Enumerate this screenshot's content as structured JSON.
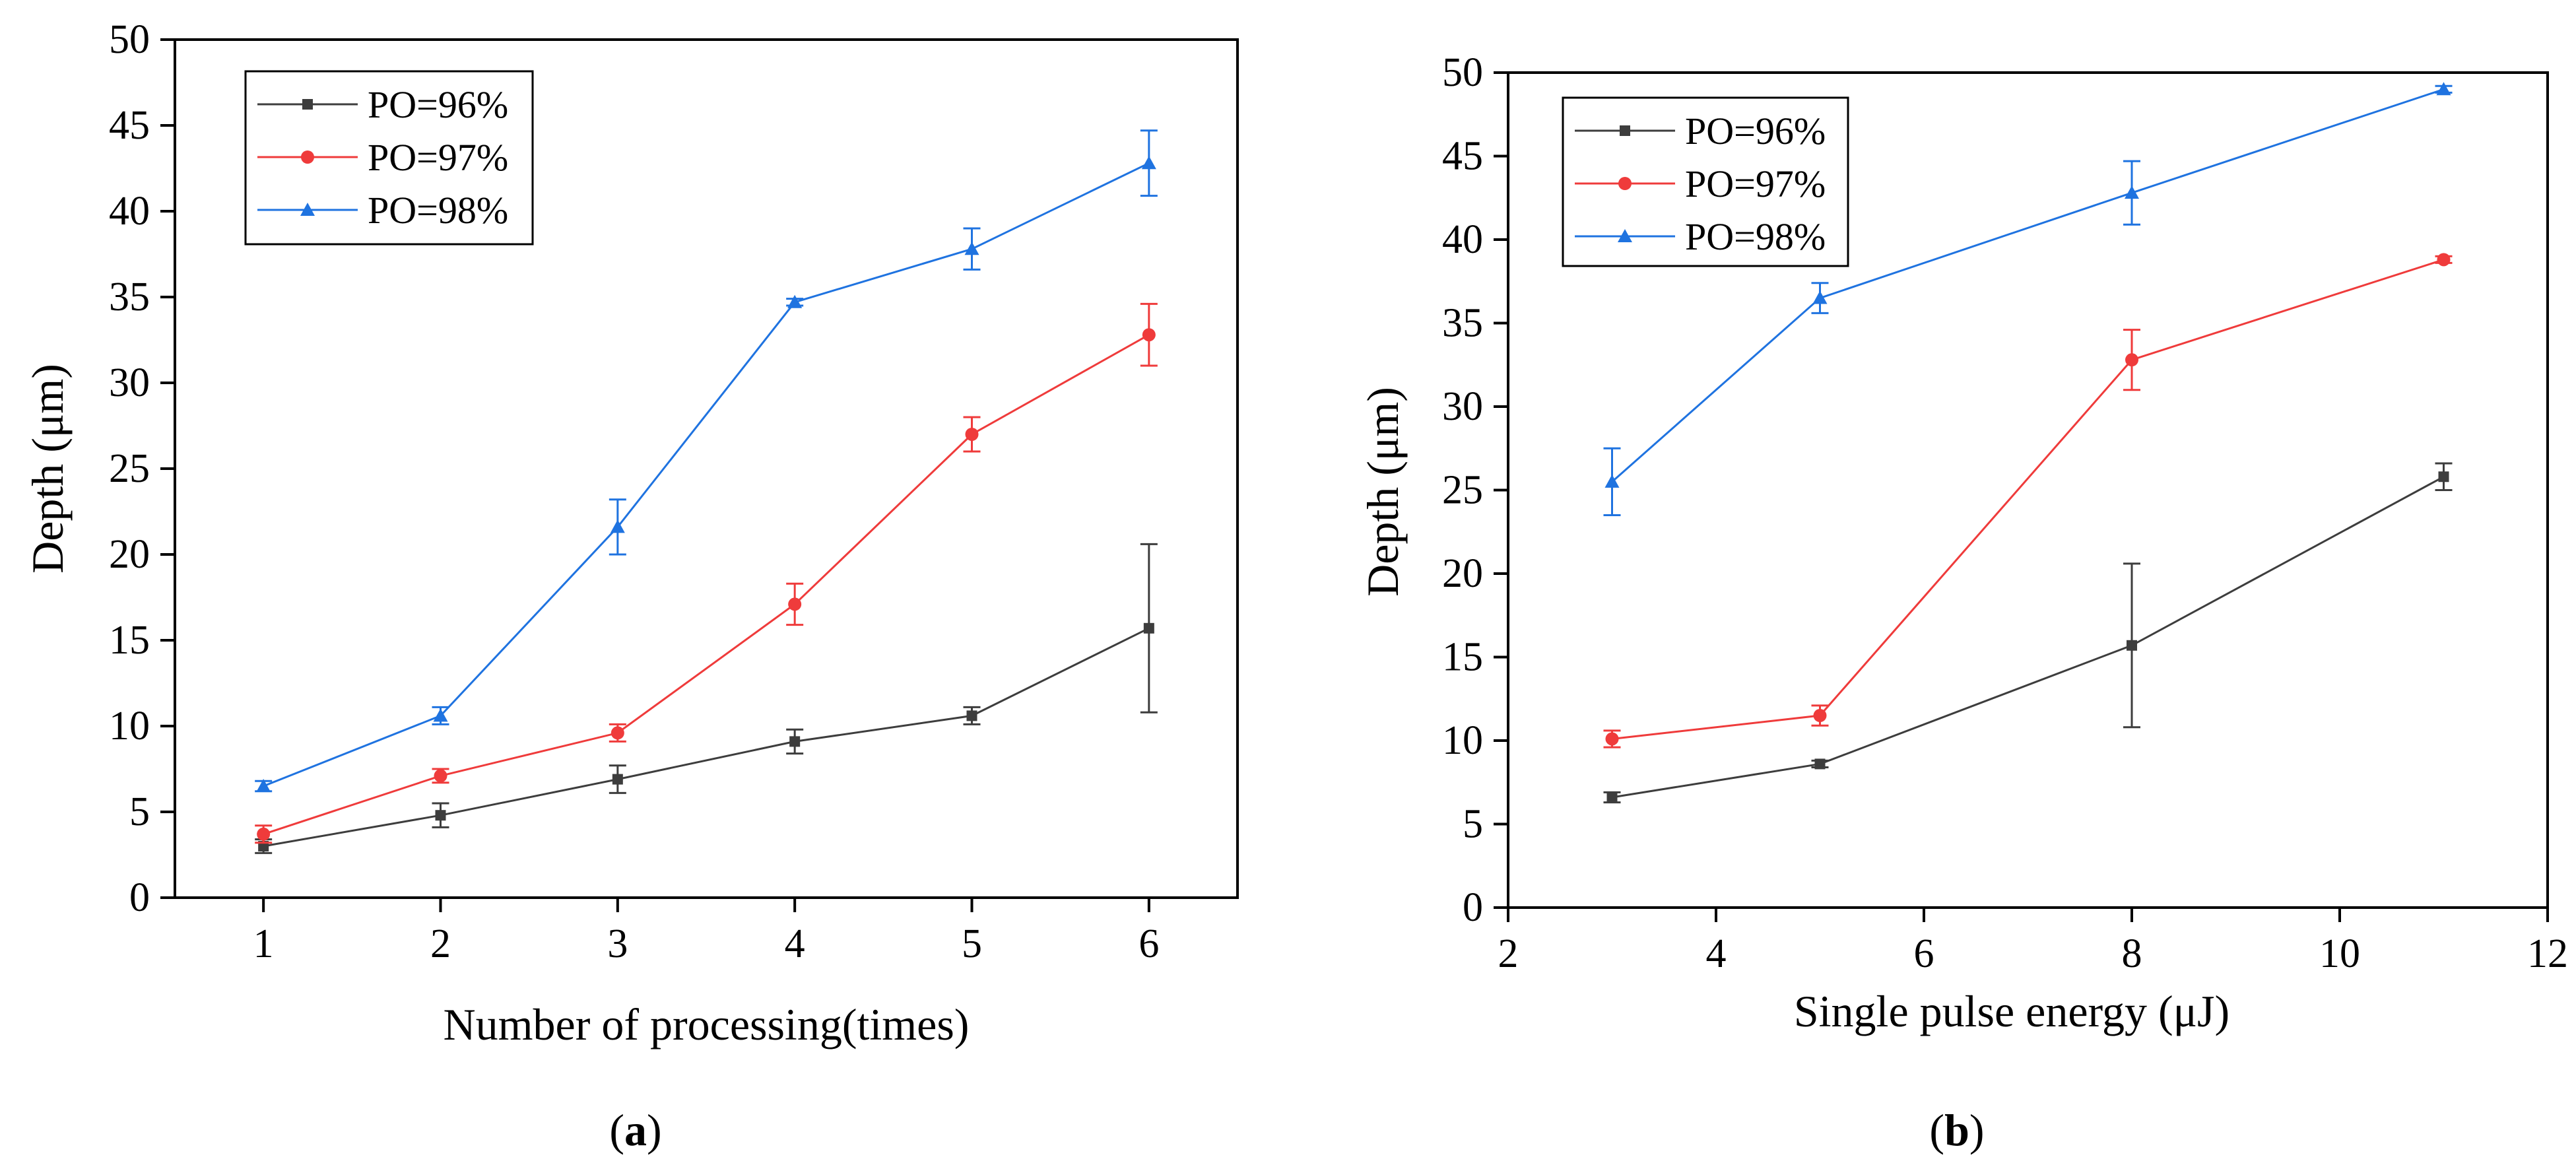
{
  "figure": {
    "panels": [
      {
        "id": "a",
        "caption_open": "(",
        "caption_letter": "a",
        "caption_close": ")"
      },
      {
        "id": "b",
        "caption_open": "(",
        "caption_letter": "b",
        "caption_close": ")"
      }
    ]
  },
  "chart_data": [
    {
      "id": "a",
      "type": "line",
      "title": "",
      "xlabel": "Number of processing(times)",
      "ylabel": "Depth (μm)",
      "xlim": [
        0.5,
        6.5
      ],
      "ylim": [
        0,
        50
      ],
      "xticks": [
        1,
        2,
        3,
        4,
        5,
        6
      ],
      "yticks": [
        0,
        5,
        10,
        15,
        20,
        25,
        30,
        35,
        40,
        45,
        50
      ],
      "grid": false,
      "legend_position": "top-left",
      "series": [
        {
          "name": "PO=96%",
          "color": "#3d3d3d",
          "marker": "square",
          "x": [
            1,
            2,
            3,
            4,
            5,
            6
          ],
          "y": [
            3.0,
            4.8,
            6.9,
            9.1,
            10.6,
            15.7
          ],
          "err": [
            0.4,
            0.7,
            0.8,
            0.7,
            0.5,
            4.9
          ]
        },
        {
          "name": "PO=97%",
          "color": "#ef3b3b",
          "marker": "circle",
          "x": [
            1,
            2,
            3,
            4,
            5,
            6
          ],
          "y": [
            3.7,
            7.1,
            9.6,
            17.1,
            27.0,
            32.8
          ],
          "err": [
            0.5,
            0.4,
            0.5,
            1.2,
            1.0,
            1.8
          ]
        },
        {
          "name": "PO=98%",
          "color": "#1f73e0",
          "marker": "triangle",
          "x": [
            1,
            2,
            3,
            4,
            5,
            6
          ],
          "y": [
            6.5,
            10.6,
            21.6,
            34.7,
            37.8,
            42.8
          ],
          "err": [
            0.3,
            0.5,
            1.6,
            0.2,
            1.2,
            1.9
          ]
        }
      ]
    },
    {
      "id": "b",
      "type": "line",
      "title": "",
      "xlabel": "Single pulse energy (μJ)",
      "ylabel": "Depth (μm)",
      "xlim": [
        2,
        12
      ],
      "ylim": [
        0,
        50
      ],
      "xticks": [
        2,
        4,
        6,
        8,
        10,
        12
      ],
      "yticks": [
        0,
        5,
        10,
        15,
        20,
        25,
        30,
        35,
        40,
        45,
        50
      ],
      "grid": false,
      "legend_position": "top-left",
      "series": [
        {
          "name": "PO=96%",
          "color": "#3d3d3d",
          "marker": "square",
          "x": [
            3,
            5,
            8,
            11
          ],
          "y": [
            6.6,
            8.6,
            15.7,
            25.8
          ],
          "err": [
            0.3,
            0.2,
            4.9,
            0.8
          ]
        },
        {
          "name": "PO=97%",
          "color": "#ef3b3b",
          "marker": "circle",
          "x": [
            3,
            5,
            8,
            11
          ],
          "y": [
            10.1,
            11.5,
            32.8,
            38.8
          ],
          "err": [
            0.5,
            0.6,
            1.8,
            0.2
          ]
        },
        {
          "name": "PO=98%",
          "color": "#1f73e0",
          "marker": "triangle",
          "x": [
            3,
            5,
            8,
            11
          ],
          "y": [
            25.5,
            36.5,
            42.8,
            49.0
          ],
          "err": [
            2.0,
            0.9,
            1.9,
            0.2
          ]
        }
      ]
    }
  ]
}
